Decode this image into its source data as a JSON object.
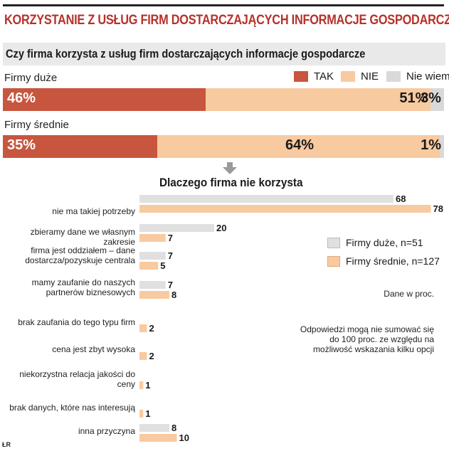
{
  "header": {
    "title": "KORZYSTANIE Z USŁUG FIRM DOSTARCZAJĄCYCH INFORMACJE GOSPODARCZE",
    "subtitle": "Czy firma korzysta z usług firm dostarczających informacje gospodarcze"
  },
  "colors": {
    "tak": "#c8553e",
    "nie": "#f8caa0",
    "nie_wiem": "#d9d9d9",
    "title": "#b5322b"
  },
  "chart_data": [
    {
      "type": "bar",
      "stacked": true,
      "orientation": "horizontal",
      "title": "Czy firma korzysta z usług firm dostarczających informacje gospodarcze",
      "categories": [
        "Firmy duże",
        "Firmy średnie"
      ],
      "series": [
        {
          "name": "TAK",
          "values": [
            46,
            35
          ],
          "labels": [
            "46%",
            "35%"
          ]
        },
        {
          "name": "NIE",
          "values": [
            51,
            64
          ],
          "labels": [
            "51%",
            "64%"
          ]
        },
        {
          "name": "Nie wiem",
          "values": [
            3,
            1
          ],
          "labels": [
            "3%",
            "1%"
          ]
        }
      ],
      "legend": "top-right"
    },
    {
      "type": "bar",
      "orientation": "horizontal",
      "title": "Dlaczego firma nie korzysta",
      "categories": [
        "nie ma takiej potrzeby",
        "zbieramy dane we własnym zakresie",
        "firma jest oddziałem – dane dostarcza/pozyskuje centrala",
        "mamy zaufanie do naszych partnerów biznesowych",
        "brak zaufania do tego typu firm",
        "cena jest zbyt wysoka",
        "niekorzystna relacja jakości do ceny",
        "brak danych, które nas interesują",
        "inna przyczyna"
      ],
      "series": [
        {
          "name": "Firmy duże, n=51",
          "values": [
            68,
            20,
            7,
            7,
            null,
            null,
            null,
            null,
            8
          ]
        },
        {
          "name": "Firmy średnie, n=127",
          "values": [
            78,
            7,
            5,
            8,
            2,
            2,
            1,
            1,
            10
          ]
        }
      ],
      "xlim": [
        0,
        80
      ],
      "legend": "right",
      "notes": [
        "Dane w proc.",
        "Odpowiedzi mogą nie sumować się do 100 proc. ze względu na możliwość wskazania kilku opcji"
      ]
    }
  ],
  "source": "ŁR"
}
